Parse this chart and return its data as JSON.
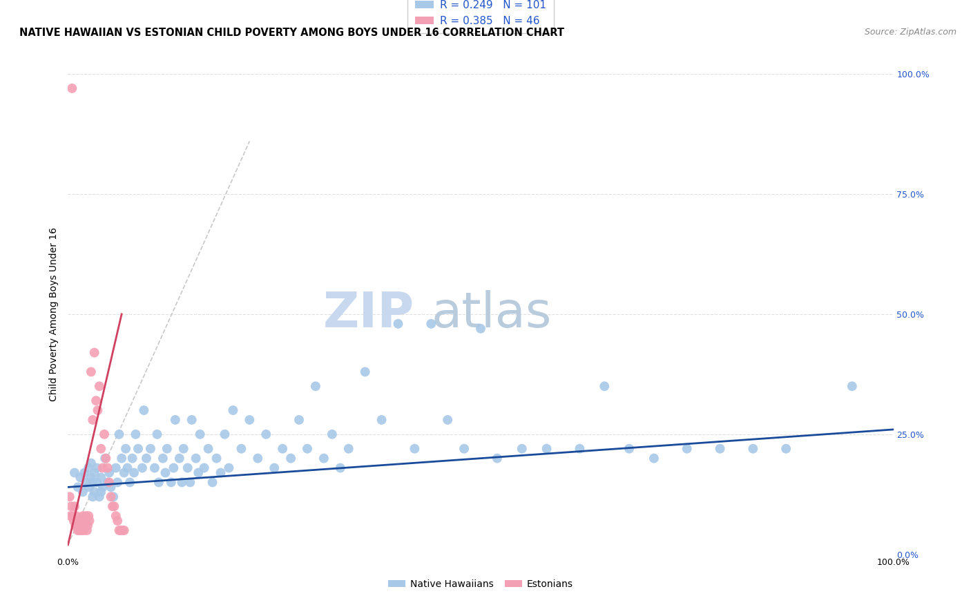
{
  "title": "NATIVE HAWAIIAN VS ESTONIAN CHILD POVERTY AMONG BOYS UNDER 16 CORRELATION CHART",
  "source": "Source: ZipAtlas.com",
  "ylabel": "Child Poverty Among Boys Under 16",
  "xlim": [
    0,
    1
  ],
  "ylim": [
    0,
    1
  ],
  "xtick_labels": [
    "0.0%",
    "100.0%"
  ],
  "xtick_positions": [
    0.0,
    1.0
  ],
  "ytick_labels": [
    "0.0%",
    "25.0%",
    "50.0%",
    "75.0%",
    "100.0%"
  ],
  "ytick_positions": [
    0.0,
    0.25,
    0.5,
    0.75,
    1.0
  ],
  "blue_R": 0.249,
  "blue_N": 101,
  "pink_R": 0.385,
  "pink_N": 46,
  "blue_color": "#a8c8e8",
  "pink_color": "#f4a0b4",
  "blue_line_color": "#1a4a9a",
  "pink_line_color": "#d04060",
  "pink_dash_color": "#c8c8c8",
  "grid_color": "#e0e0e0",
  "watermark_zip_color": "#c8d8ee",
  "watermark_atlas_color": "#b8ccdd",
  "blue_scatter_x": [
    0.008,
    0.012,
    0.015,
    0.018,
    0.02,
    0.022,
    0.025,
    0.025,
    0.028,
    0.028,
    0.03,
    0.03,
    0.032,
    0.032,
    0.035,
    0.035,
    0.038,
    0.04,
    0.04,
    0.042,
    0.045,
    0.048,
    0.05,
    0.052,
    0.055,
    0.058,
    0.06,
    0.062,
    0.065,
    0.068,
    0.07,
    0.072,
    0.075,
    0.078,
    0.08,
    0.082,
    0.085,
    0.09,
    0.092,
    0.095,
    0.1,
    0.105,
    0.108,
    0.11,
    0.115,
    0.118,
    0.12,
    0.125,
    0.128,
    0.13,
    0.135,
    0.138,
    0.14,
    0.145,
    0.148,
    0.15,
    0.155,
    0.158,
    0.16,
    0.165,
    0.17,
    0.175,
    0.18,
    0.185,
    0.19,
    0.195,
    0.2,
    0.21,
    0.22,
    0.23,
    0.24,
    0.25,
    0.26,
    0.27,
    0.28,
    0.29,
    0.3,
    0.31,
    0.32,
    0.33,
    0.34,
    0.36,
    0.38,
    0.4,
    0.42,
    0.44,
    0.46,
    0.48,
    0.5,
    0.52,
    0.55,
    0.58,
    0.62,
    0.65,
    0.68,
    0.71,
    0.75,
    0.79,
    0.83,
    0.87,
    0.95
  ],
  "blue_scatter_y": [
    0.17,
    0.14,
    0.16,
    0.13,
    0.17,
    0.15,
    0.18,
    0.14,
    0.16,
    0.19,
    0.15,
    0.12,
    0.17,
    0.13,
    0.15,
    0.18,
    0.12,
    0.16,
    0.13,
    0.14,
    0.2,
    0.15,
    0.17,
    0.14,
    0.12,
    0.18,
    0.15,
    0.25,
    0.2,
    0.17,
    0.22,
    0.18,
    0.15,
    0.2,
    0.17,
    0.25,
    0.22,
    0.18,
    0.3,
    0.2,
    0.22,
    0.18,
    0.25,
    0.15,
    0.2,
    0.17,
    0.22,
    0.15,
    0.18,
    0.28,
    0.2,
    0.15,
    0.22,
    0.18,
    0.15,
    0.28,
    0.2,
    0.17,
    0.25,
    0.18,
    0.22,
    0.15,
    0.2,
    0.17,
    0.25,
    0.18,
    0.3,
    0.22,
    0.28,
    0.2,
    0.25,
    0.18,
    0.22,
    0.2,
    0.28,
    0.22,
    0.35,
    0.2,
    0.25,
    0.18,
    0.22,
    0.38,
    0.28,
    0.48,
    0.22,
    0.48,
    0.28,
    0.22,
    0.47,
    0.2,
    0.22,
    0.22,
    0.22,
    0.35,
    0.22,
    0.2,
    0.22,
    0.22,
    0.22,
    0.22,
    0.35
  ],
  "pink_scatter_x": [
    0.002,
    0.003,
    0.004,
    0.005,
    0.006,
    0.007,
    0.008,
    0.009,
    0.01,
    0.011,
    0.012,
    0.013,
    0.014,
    0.015,
    0.016,
    0.017,
    0.018,
    0.019,
    0.02,
    0.021,
    0.022,
    0.023,
    0.024,
    0.025,
    0.026,
    0.028,
    0.03,
    0.032,
    0.034,
    0.036,
    0.038,
    0.04,
    0.042,
    0.044,
    0.046,
    0.048,
    0.05,
    0.052,
    0.054,
    0.056,
    0.058,
    0.06,
    0.062,
    0.064,
    0.066,
    0.068
  ],
  "pink_scatter_y": [
    0.12,
    0.08,
    0.1,
    0.97,
    0.08,
    0.07,
    0.1,
    0.06,
    0.08,
    0.06,
    0.05,
    0.07,
    0.05,
    0.07,
    0.05,
    0.06,
    0.08,
    0.05,
    0.07,
    0.06,
    0.08,
    0.05,
    0.06,
    0.08,
    0.07,
    0.38,
    0.28,
    0.42,
    0.32,
    0.3,
    0.35,
    0.22,
    0.18,
    0.25,
    0.2,
    0.18,
    0.15,
    0.12,
    0.1,
    0.1,
    0.08,
    0.07,
    0.05,
    0.05,
    0.05,
    0.05
  ]
}
